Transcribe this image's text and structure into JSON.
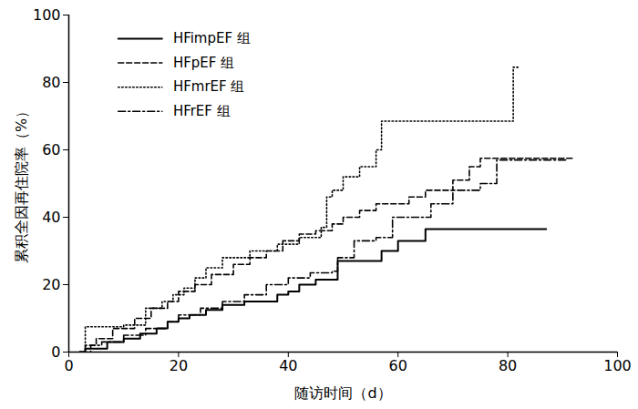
{
  "chart_data": {
    "type": "line",
    "x_label": "随访时间（d）",
    "y_label": "累积全因再住院率（%）",
    "xlim": [
      0,
      100
    ],
    "xticks": [
      0,
      20,
      40,
      60,
      80,
      100
    ],
    "ylim": [
      0,
      100
    ],
    "yticks": [
      0,
      20,
      40,
      60,
      80,
      100
    ],
    "grid": false,
    "legend": "upper left",
    "series": [
      {
        "name": "HFimpEF 组",
        "color": "#000000",
        "line_style": "solid",
        "x": [
          2,
          3,
          7,
          10,
          13,
          16,
          18,
          20,
          22,
          25,
          28,
          32,
          38,
          40,
          42,
          45,
          49,
          57,
          60,
          65,
          87
        ],
        "values": [
          0,
          1,
          3,
          4,
          5.5,
          7,
          9,
          10,
          11,
          12.5,
          14,
          15,
          17,
          18,
          20,
          21.5,
          27,
          30,
          33,
          36.5,
          36.5
        ]
      },
      {
        "name": "HFpEF 组",
        "color": "#000000",
        "line_style": "dashed",
        "x": [
          2,
          3,
          5,
          8,
          12,
          15,
          18,
          20,
          23,
          26,
          30,
          33,
          36,
          39,
          42,
          45,
          48,
          50,
          53,
          56,
          62,
          65,
          70,
          73,
          75,
          92
        ],
        "values": [
          0,
          2,
          4,
          7,
          10,
          13,
          15,
          18,
          20,
          23,
          26,
          28,
          30,
          33,
          35,
          36,
          38,
          40,
          42,
          44,
          46,
          48,
          51,
          55,
          57.5,
          57.5
        ]
      },
      {
        "name": "HFmrEF 组",
        "color": "#000000",
        "line_style": "dotted",
        "x": [
          2,
          3,
          10,
          14,
          17,
          19,
          21,
          23,
          25,
          28,
          33,
          38,
          42,
          46,
          47,
          48,
          50,
          53,
          56,
          57,
          81,
          82
        ],
        "values": [
          0,
          7.5,
          8,
          13,
          15,
          17,
          19,
          22,
          25,
          28,
          30,
          32,
          34,
          37,
          46,
          48,
          52,
          55,
          60,
          68.5,
          84.5,
          84.5
        ]
      },
      {
        "name": "HFrEF 组",
        "color": "#000000",
        "line_style": "dashdot",
        "x": [
          2,
          4,
          6,
          10,
          14,
          18,
          20,
          24,
          28,
          32,
          36,
          40,
          44,
          48,
          49,
          52,
          56,
          59,
          64,
          66,
          70,
          75,
          78,
          91
        ],
        "values": [
          0,
          2,
          3,
          5,
          7,
          9,
          11,
          13,
          15,
          17,
          20,
          22,
          23.5,
          24,
          28,
          33,
          34,
          40,
          40,
          44,
          48,
          50,
          57,
          57
        ]
      }
    ]
  }
}
